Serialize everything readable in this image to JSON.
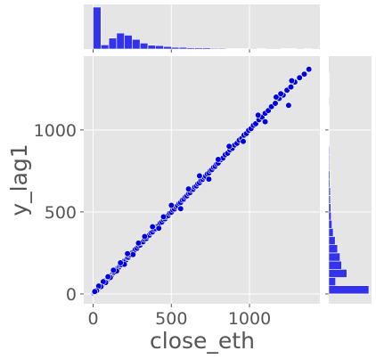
{
  "chart_data": {
    "type": "scatter",
    "kind": "jointplot",
    "xlabel": "close_eth",
    "ylabel": "y_lag1",
    "xlim": [
      -60,
      1450
    ],
    "ylim": [
      -60,
      1450
    ],
    "x_ticks": [
      0,
      500,
      1000
    ],
    "y_ticks": [
      0,
      500,
      1000
    ],
    "grid": true,
    "point_color": "#0000dd",
    "hist_color": "#3333ee",
    "panel_bg": "#e5e5e5",
    "marginal_x_hist": {
      "bin_start": 0,
      "bin_width": 50,
      "counts": [
        100,
        10,
        26,
        38,
        33,
        23,
        14,
        9,
        8,
        6,
        4,
        4,
        3,
        3,
        3,
        2,
        2,
        1,
        1,
        1,
        0,
        1,
        0,
        0,
        1,
        1,
        0,
        1
      ]
    },
    "marginal_y_hist": {
      "bin_start": 0,
      "bin_width": 50,
      "counts": [
        100,
        17,
        45,
        32,
        28,
        22,
        16,
        11,
        8,
        6,
        5,
        4,
        4,
        3,
        3,
        2,
        2,
        2,
        1,
        1,
        1,
        1,
        1,
        0,
        1,
        1,
        1
      ]
    },
    "points": {
      "x": [
        3,
        6,
        9,
        12,
        15,
        20,
        25,
        30,
        38,
        45,
        52,
        60,
        68,
        75,
        82,
        90,
        98,
        105,
        112,
        120,
        128,
        135,
        142,
        150,
        158,
        165,
        172,
        180,
        188,
        195,
        202,
        210,
        218,
        225,
        232,
        240,
        250,
        260,
        270,
        280,
        290,
        300,
        310,
        320,
        330,
        340,
        350,
        360,
        370,
        380,
        390,
        400,
        410,
        420,
        430,
        440,
        450,
        460,
        470,
        480,
        490,
        500,
        510,
        520,
        530,
        540,
        550,
        560,
        570,
        580,
        590,
        600,
        610,
        620,
        630,
        640,
        650,
        660,
        670,
        680,
        690,
        700,
        710,
        720,
        730,
        740,
        750,
        760,
        770,
        780,
        790,
        800,
        815,
        830,
        845,
        860,
        875,
        890,
        905,
        920,
        935,
        950,
        965,
        980,
        995,
        1010,
        1025,
        1040,
        1060,
        1080,
        1100,
        1120,
        1140,
        1165,
        1190,
        1215,
        1240,
        1265,
        1290,
        1320,
        1350,
        1380,
        1200,
        1270,
        1250,
        1170,
        1100,
        1055,
        960,
        870,
        800,
        740,
        680,
        610,
        560,
        500,
        450,
        420,
        380,
        330,
        290,
        255,
        220,
        200,
        175,
        150,
        130,
        110,
        95,
        80,
        65,
        50,
        35,
        22,
        10
      ],
      "y": [
        4,
        8,
        10,
        14,
        13,
        22,
        27,
        28,
        40,
        44,
        55,
        58,
        70,
        74,
        85,
        88,
        100,
        103,
        115,
        118,
        130,
        133,
        145,
        148,
        160,
        163,
        175,
        178,
        190,
        193,
        205,
        208,
        220,
        223,
        235,
        238,
        252,
        258,
        272,
        278,
        292,
        298,
        312,
        318,
        332,
        338,
        352,
        358,
        372,
        378,
        392,
        398,
        412,
        418,
        432,
        438,
        452,
        458,
        472,
        478,
        492,
        498,
        512,
        518,
        532,
        538,
        552,
        558,
        572,
        578,
        592,
        598,
        612,
        618,
        632,
        638,
        652,
        658,
        672,
        678,
        692,
        698,
        712,
        718,
        732,
        738,
        752,
        758,
        772,
        778,
        792,
        798,
        818,
        828,
        848,
        858,
        878,
        888,
        908,
        918,
        938,
        948,
        968,
        978,
        998,
        1008,
        1028,
        1038,
        1062,
        1078,
        1102,
        1118,
        1142,
        1162,
        1192,
        1212,
        1242,
        1262,
        1292,
        1318,
        1340,
        1370,
        1220,
        1300,
        1150,
        1200,
        1050,
        1090,
        930,
        900,
        820,
        700,
        720,
        640,
        520,
        540,
        470,
        400,
        410,
        350,
        310,
        240,
        245,
        180,
        190,
        140,
        145,
        100,
        105,
        70,
        75,
        45,
        48,
        20,
        15
      ]
    }
  }
}
